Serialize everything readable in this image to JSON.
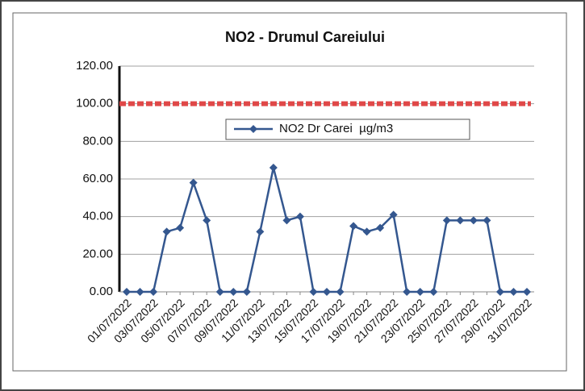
{
  "chart_data": {
    "type": "line",
    "title": "NO2 - Drumul Careiului",
    "categories": [
      "01/07/2022",
      null,
      "03/07/2022",
      null,
      "05/07/2022",
      null,
      "07/07/2022",
      null,
      "09/07/2022",
      null,
      "11/07/2022",
      null,
      "13/07/2022",
      null,
      "15/07/2022",
      null,
      "17/07/2022",
      null,
      "19/07/2022",
      null,
      "21/07/2022",
      null,
      "23/07/2022",
      null,
      "25/07/2022",
      null,
      "27/07/2022",
      null,
      "29/07/2022",
      null,
      "31/07/2022"
    ],
    "series": [
      {
        "name": "NO2 Dr Carei  µg/m3",
        "color": "#34578f",
        "values": [
          0,
          0,
          0,
          32,
          34,
          58,
          38,
          0,
          0,
          0,
          32,
          66,
          38,
          40,
          0,
          0,
          0,
          35,
          32,
          34,
          41,
          0,
          0,
          0,
          38,
          38,
          38,
          38,
          0,
          0,
          0
        ]
      }
    ],
    "threshold": {
      "value": 100,
      "color": "#e04848"
    },
    "ylim": [
      0,
      120
    ],
    "yticks": [
      {
        "value": 0,
        "label": "0.00"
      },
      {
        "value": 20,
        "label": "20.00"
      },
      {
        "value": 40,
        "label": "40.00"
      },
      {
        "value": 60,
        "label": "60.00"
      },
      {
        "value": 80,
        "label": "80.00"
      },
      {
        "value": 100,
        "label": "100.00"
      },
      {
        "value": 120,
        "label": "120.00"
      }
    ],
    "grid": true,
    "legend": "top"
  }
}
